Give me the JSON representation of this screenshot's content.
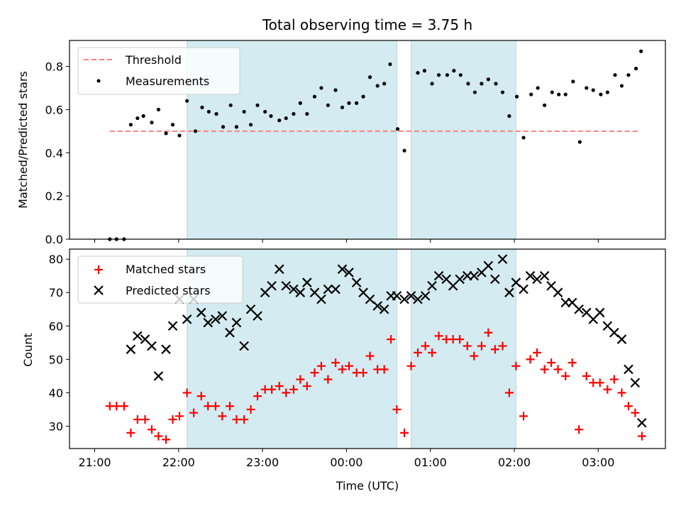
{
  "chart_data": {
    "type": "scatter",
    "title": "Total observing time = 3.75 h",
    "xlabel": "Time (UTC)",
    "x_ticks": [
      "21:00",
      "22:00",
      "23:00",
      "00:00",
      "01:00",
      "02:00",
      "03:00"
    ],
    "x_tick_hours": [
      0,
      1,
      2,
      3,
      4,
      5,
      6
    ],
    "x_range_hours": [
      -0.3,
      6.8
    ],
    "observing_windows_hours": [
      [
        1.1,
        3.6
      ],
      [
        3.77,
        5.02
      ]
    ],
    "window_color": "#d3ebf1",
    "panels": [
      {
        "ylabel": "Matched/Predicted stars",
        "ylim": [
          0,
          0.92
        ],
        "y_ticks": [
          0.0,
          0.2,
          0.4,
          0.6,
          0.8
        ],
        "legend": [
          "Threshold",
          "Measurements"
        ],
        "threshold": {
          "name": "Threshold",
          "value": 0.5,
          "x_start": 0.18,
          "x_end": 6.5,
          "color": "#ff7f7f"
        },
        "measurements": {
          "name": "Measurements",
          "color": "#000000",
          "x": [
            0.18,
            0.26,
            0.35,
            0.43,
            0.51,
            0.58,
            0.68,
            0.76,
            0.85,
            0.93,
            1.01,
            1.1,
            1.2,
            1.28,
            1.36,
            1.45,
            1.53,
            1.62,
            1.69,
            1.78,
            1.86,
            1.94,
            2.03,
            2.1,
            2.2,
            2.28,
            2.37,
            2.45,
            2.53,
            2.62,
            2.7,
            2.78,
            2.87,
            2.95,
            3.03,
            3.12,
            3.2,
            3.28,
            3.37,
            3.45,
            3.52,
            3.61,
            3.69,
            3.85,
            3.93,
            4.02,
            4.1,
            4.2,
            4.28,
            4.36,
            4.45,
            4.53,
            4.61,
            4.69,
            4.78,
            4.86,
            4.94,
            5.03,
            5.11,
            5.2,
            5.28,
            5.36,
            5.45,
            5.53,
            5.61,
            5.7,
            5.78,
            5.86,
            5.94,
            6.03,
            6.11,
            6.2,
            6.28,
            6.36,
            6.45,
            6.51
          ],
          "y": [
            0.0,
            0.0,
            0.0,
            0.53,
            0.56,
            0.57,
            0.54,
            0.6,
            0.49,
            0.53,
            0.48,
            0.64,
            0.5,
            0.61,
            0.59,
            0.58,
            0.52,
            0.62,
            0.52,
            0.59,
            0.53,
            0.62,
            0.59,
            0.57,
            0.55,
            0.56,
            0.58,
            0.63,
            0.58,
            0.66,
            0.7,
            0.62,
            0.69,
            0.61,
            0.63,
            0.63,
            0.66,
            0.75,
            0.71,
            0.72,
            0.81,
            0.51,
            0.41,
            0.77,
            0.78,
            0.72,
            0.76,
            0.76,
            0.78,
            0.76,
            0.72,
            0.68,
            0.72,
            0.74,
            0.72,
            0.68,
            0.57,
            0.66,
            0.47,
            0.67,
            0.7,
            0.62,
            0.68,
            0.67,
            0.67,
            0.73,
            0.45,
            0.7,
            0.69,
            0.67,
            0.68,
            0.76,
            0.71,
            0.76,
            0.79,
            0.87
          ]
        }
      },
      {
        "ylabel": "Count",
        "ylim": [
          23.3,
          83.0
        ],
        "y_ticks": [
          30,
          40,
          50,
          60,
          70,
          80
        ],
        "legend": [
          "Matched stars",
          "Predicted stars"
        ],
        "series": [
          {
            "name": "Matched stars",
            "marker": "plus",
            "color": "#ff0000",
            "x": [
              0.18,
              0.26,
              0.35,
              0.43,
              0.51,
              0.6,
              0.68,
              0.76,
              0.85,
              0.93,
              1.01,
              1.1,
              1.18,
              1.27,
              1.35,
              1.44,
              1.52,
              1.61,
              1.69,
              1.78,
              1.86,
              1.94,
              2.03,
              2.11,
              2.2,
              2.28,
              2.37,
              2.45,
              2.53,
              2.62,
              2.7,
              2.78,
              2.87,
              2.95,
              3.03,
              3.12,
              3.2,
              3.28,
              3.37,
              3.45,
              3.53,
              3.6,
              3.69,
              3.77,
              3.85,
              3.94,
              4.02,
              4.1,
              4.19,
              4.27,
              4.35,
              4.44,
              4.52,
              4.61,
              4.69,
              4.77,
              4.86,
              4.94,
              5.02,
              5.11,
              5.19,
              5.27,
              5.36,
              5.44,
              5.52,
              5.61,
              5.69,
              5.77,
              5.86,
              5.94,
              6.02,
              6.11,
              6.19,
              6.28,
              6.36,
              6.44,
              6.52
            ],
            "y": [
              36,
              36,
              36,
              28,
              32,
              32,
              29,
              27,
              26,
              32,
              33,
              40,
              34,
              39,
              36,
              36,
              33,
              36,
              32,
              32,
              35,
              39,
              41,
              41,
              42,
              40,
              41,
              44,
              42,
              46,
              48,
              44,
              49,
              47,
              48,
              46,
              46,
              51,
              47,
              47,
              56,
              35,
              28,
              48,
              52,
              54,
              52,
              57,
              56,
              56,
              56,
              54,
              51,
              54,
              58,
              53,
              54,
              40,
              48,
              33,
              50,
              52,
              47,
              49,
              47,
              45,
              49,
              29,
              45,
              43,
              43,
              41,
              44,
              40,
              36,
              34,
              27
            ]
          },
          {
            "name": "Predicted stars",
            "marker": "x",
            "color": "#000000",
            "x": [
              0.43,
              0.51,
              0.6,
              0.68,
              0.76,
              0.85,
              0.93,
              1.01,
              1.1,
              1.18,
              1.27,
              1.35,
              1.44,
              1.52,
              1.61,
              1.69,
              1.78,
              1.86,
              1.94,
              2.03,
              2.11,
              2.2,
              2.28,
              2.37,
              2.45,
              2.53,
              2.62,
              2.7,
              2.78,
              2.87,
              2.95,
              3.03,
              3.12,
              3.2,
              3.28,
              3.37,
              3.45,
              3.53,
              3.6,
              3.69,
              3.77,
              3.85,
              3.94,
              4.02,
              4.1,
              4.19,
              4.27,
              4.35,
              4.44,
              4.52,
              4.61,
              4.69,
              4.77,
              4.86,
              4.94,
              5.02,
              5.11,
              5.19,
              5.27,
              5.36,
              5.44,
              5.52,
              5.61,
              5.69,
              5.77,
              5.86,
              5.94,
              6.02,
              6.11,
              6.19,
              6.28,
              6.36,
              6.44,
              6.52
            ],
            "y": [
              53,
              57,
              56,
              54,
              45,
              53,
              60,
              68,
              62,
              68,
              64,
              61,
              62,
              63,
              58,
              61,
              54,
              65,
              63,
              70,
              72,
              77,
              72,
              71,
              70,
              73,
              70,
              68,
              71,
              71,
              77,
              76,
              73,
              70,
              68,
              66,
              65,
              69,
              69,
              68,
              69,
              68,
              69,
              72,
              75,
              74,
              72,
              74,
              75,
              75,
              76,
              78,
              74,
              80,
              70,
              73,
              71,
              75,
              74,
              75,
              72,
              70,
              67,
              67,
              65,
              64,
              62,
              64,
              60,
              58,
              56,
              47,
              43,
              31
            ]
          }
        ]
      }
    ]
  }
}
